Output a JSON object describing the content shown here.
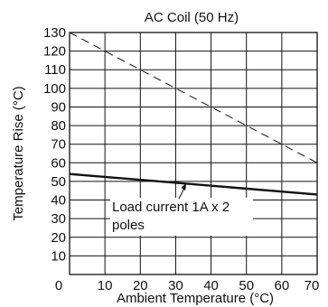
{
  "chart_data": {
    "type": "line",
    "title": "AC Coil (50 Hz)",
    "xlabel": "Ambient Temperature (°C)",
    "ylabel": "Temperature Rise (°C)",
    "xlim": [
      0,
      70
    ],
    "ylim": [
      0,
      130
    ],
    "x_ticks": [
      "0",
      "10",
      "20",
      "30",
      "40",
      "50",
      "60",
      "70"
    ],
    "y_ticks": [
      "10",
      "20",
      "30",
      "40",
      "50",
      "60",
      "70",
      "80",
      "90",
      "100",
      "110",
      "120",
      "130"
    ],
    "grid": true,
    "series": [
      {
        "style": "dashed",
        "x": [
          0,
          70
        ],
        "y": [
          130,
          60
        ]
      },
      {
        "style": "solid-thick",
        "x": [
          0,
          70
        ],
        "y": [
          54,
          43
        ]
      }
    ],
    "annotations": [
      {
        "lines": [
          "Load current 1A x 2",
          "poles"
        ],
        "points_to": {
          "x": 33,
          "y": 49
        }
      }
    ]
  }
}
